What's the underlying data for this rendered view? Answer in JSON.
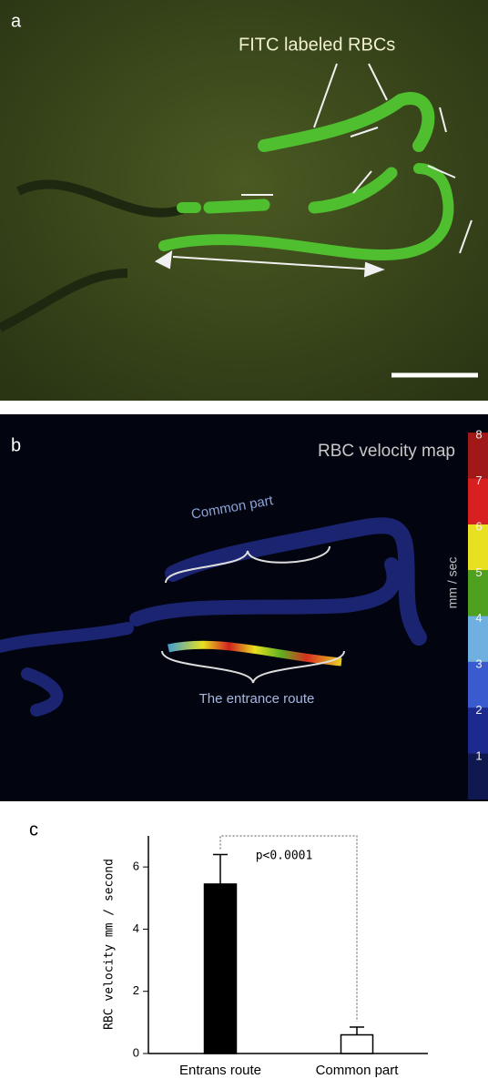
{
  "panel_a": {
    "panel_label": "a",
    "annotation": "FITC labeled RBCs"
  },
  "panel_b": {
    "panel_label": "b",
    "title": "RBC velocity map",
    "annotations": [
      "Common part",
      "The entrance route"
    ],
    "colorbar": {
      "label": "mm / sec",
      "ticks": [
        1,
        2,
        3,
        4,
        5,
        6,
        7,
        8
      ]
    }
  },
  "chart_data": {
    "type": "bar",
    "panel_label": "c",
    "y_label": "RBC velocity mm / second",
    "categories": [
      "Entrans route",
      "Common part"
    ],
    "values": [
      5.45,
      0.6
    ],
    "errors": [
      0.95,
      0.25
    ],
    "colors": [
      "#000000",
      "#ffffff"
    ],
    "ylim": [
      0,
      7
    ],
    "yticks": [
      0,
      2,
      4,
      6
    ],
    "annotation": "p<0.0001"
  }
}
